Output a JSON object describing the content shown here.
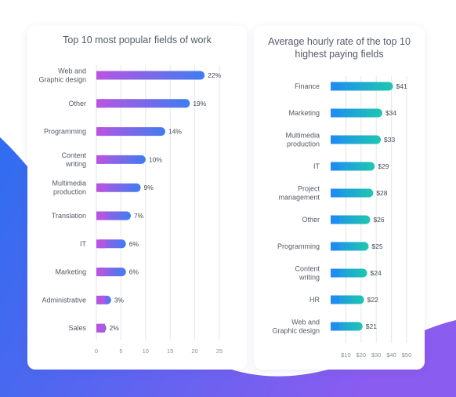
{
  "colors": {
    "background_blue": "#2f6df0",
    "background_purple": "#8a5cf0",
    "left_bar_start": "#b655e0",
    "left_bar_end": "#3f7cf2",
    "right_bar_start": "#1e8ef0",
    "right_bar_end": "#1ec7b0",
    "gridline": "#e4e6ea"
  },
  "chart_data": [
    {
      "type": "bar",
      "orientation": "horizontal",
      "title": "Top 10 most popular fields of work",
      "categories": [
        "Web and\nGraphic design",
        "Other",
        "Programming",
        "Content\nwriting",
        "Multimedia\nproduction",
        "Translation",
        "IT",
        "Marketing",
        "Administrative",
        "Sales"
      ],
      "values": [
        22,
        19,
        14,
        10,
        9,
        7,
        6,
        6,
        3,
        2
      ],
      "value_labels": [
        "22%",
        "19%",
        "14%",
        "10%",
        "9%",
        "7%",
        "6%",
        "6%",
        "3%",
        "2%"
      ],
      "xlim": [
        0,
        25
      ],
      "xticks": [
        0,
        5,
        10,
        15,
        20,
        25
      ],
      "xtick_labels": [
        "0",
        "5",
        "10",
        "15",
        "20",
        "25"
      ],
      "grid": true
    },
    {
      "type": "bar",
      "orientation": "horizontal",
      "title": "Average hourly rate of the top 10 highest paying fields",
      "categories": [
        "Finance",
        "Marketing",
        "Multimedia\nproduction",
        "IT",
        "Project\nmanagement",
        "Other",
        "Programming",
        "Content\nwriting",
        "HR",
        "Web and\nGraphic design"
      ],
      "values": [
        41,
        34,
        33,
        29,
        28,
        26,
        25,
        24,
        22,
        21
      ],
      "value_labels": [
        "$41",
        "$34",
        "$33",
        "$29",
        "$28",
        "$26",
        "$25",
        "$24",
        "$22",
        "$21"
      ],
      "xlim": [
        0,
        50
      ],
      "xticks": [
        10,
        20,
        30,
        40,
        50
      ],
      "xtick_labels": [
        "$10",
        "$20",
        "$30",
        "$40",
        "$50"
      ],
      "grid": true
    }
  ]
}
